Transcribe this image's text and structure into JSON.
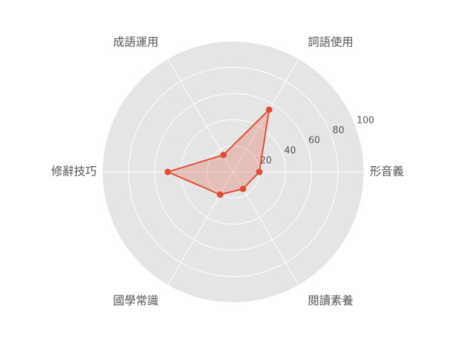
{
  "chart_data": {
    "type": "radar",
    "categories": [
      "形音義",
      "詞語使用",
      "成語運用",
      "修辭技巧",
      "國學常識",
      "閱讀素養"
    ],
    "series": [
      {
        "values": [
          20,
          55,
          15,
          50,
          20,
          15
        ]
      }
    ],
    "rlim": [
      0,
      100
    ],
    "rticks": [
      20,
      40,
      60,
      80,
      100
    ],
    "grid": true,
    "colors": {
      "series": "#E24A33",
      "background": "#E5E5E5",
      "grid": "#FFFFFF",
      "text": "#555555"
    }
  }
}
